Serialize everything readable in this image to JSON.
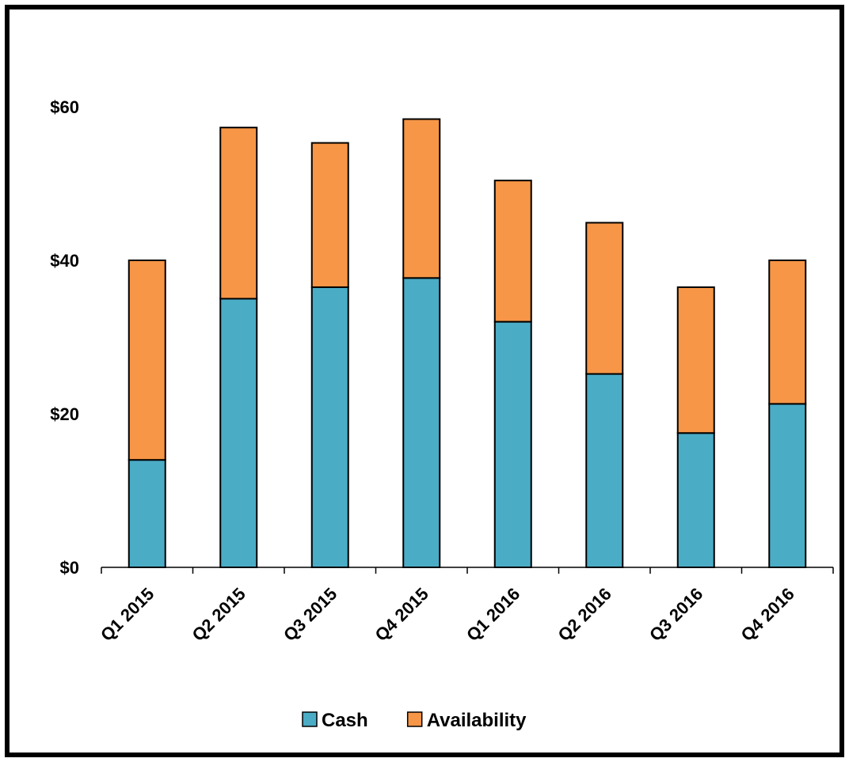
{
  "chart_data": {
    "type": "bar",
    "stacked": true,
    "categories": [
      "Q1 2015",
      "Q2 2015",
      "Q3 2015",
      "Q4 2015",
      "Q1 2016",
      "Q2 2016",
      "Q3 2016",
      "Q4 2016"
    ],
    "series": [
      {
        "name": "Cash",
        "values": [
          14.0,
          35.0,
          36.5,
          37.7,
          32.0,
          25.2,
          17.5,
          21.3
        ],
        "color": "#4BACC6"
      },
      {
        "name": "Availability",
        "values": [
          26.0,
          22.3,
          18.8,
          20.7,
          18.4,
          19.7,
          19.0,
          18.7
        ],
        "color": "#F79646"
      }
    ],
    "y_ticks": [
      {
        "value": 0,
        "label": "$0"
      },
      {
        "value": 20,
        "label": "$20"
      },
      {
        "value": 40,
        "label": "$40"
      },
      {
        "value": 60,
        "label": "$60"
      }
    ],
    "ylim": [
      0,
      60
    ],
    "grid": false,
    "legend_position": "bottom",
    "title": "",
    "xlabel": "",
    "ylabel": ""
  }
}
